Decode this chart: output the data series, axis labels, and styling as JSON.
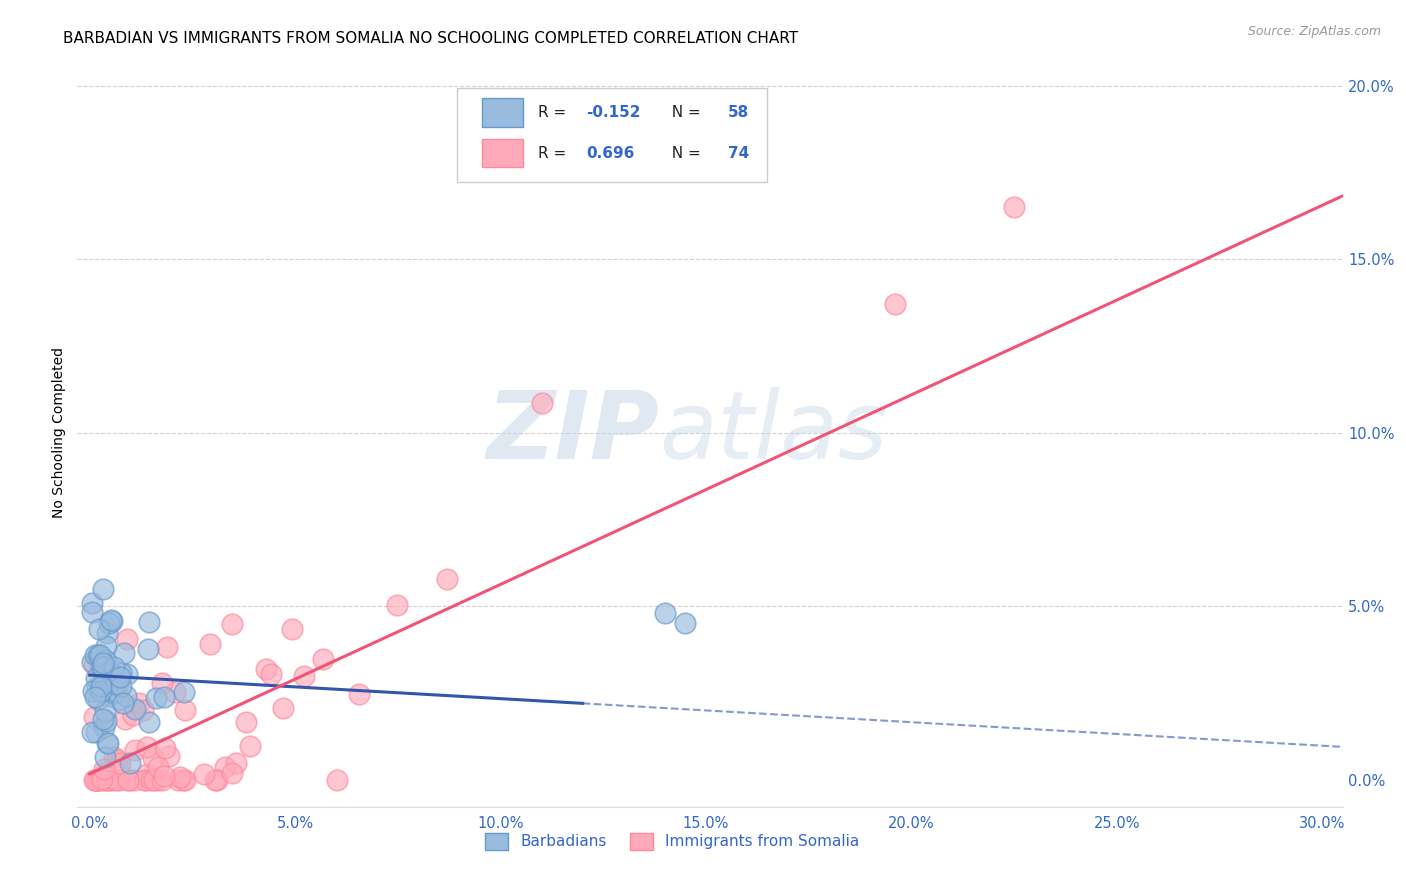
{
  "title": "BARBADIAN VS IMMIGRANTS FROM SOMALIA NO SCHOOLING COMPLETED CORRELATION CHART",
  "source": "Source: ZipAtlas.com",
  "ylabel": "No Schooling Completed",
  "blue_R": -0.152,
  "blue_N": 58,
  "pink_R": 0.696,
  "pink_N": 74,
  "blue_color": "#99BBDD",
  "pink_color": "#FFAABB",
  "blue_edge_color": "#6699CC",
  "pink_edge_color": "#FF8899",
  "blue_line_color": "#3355AA",
  "pink_line_color": "#EE5577",
  "legend_label_blue": "Barbadians",
  "legend_label_pink": "Immigrants from Somalia",
  "watermark": "ZIPatlas",
  "xmin": 0.0,
  "xmax": 0.305,
  "ymin": -0.005,
  "ymax": 0.208,
  "x_ticks": [
    0.0,
    0.05,
    0.1,
    0.15,
    0.2,
    0.25,
    0.3
  ],
  "y_ticks_right": [
    0.0,
    0.05,
    0.1,
    0.15,
    0.2
  ]
}
